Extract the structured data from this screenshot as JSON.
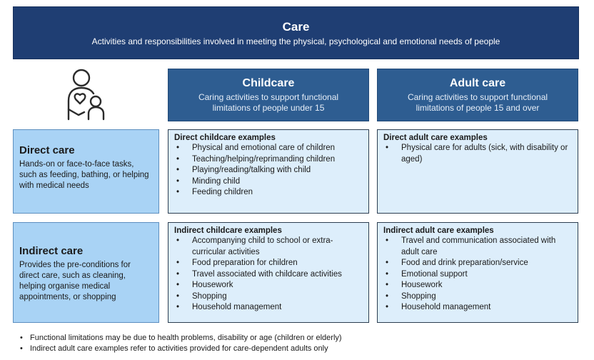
{
  "banner": {
    "title": "Care",
    "subtitle": "Activities and responsibilities involved in meeting the physical, psychological and emotional needs of people"
  },
  "icon": "person-holding-child-icon",
  "columns": {
    "childcare": {
      "title": "Childcare",
      "subtitle": "Caring activities to support functional limitations of people under 15"
    },
    "adult": {
      "title": "Adult care",
      "subtitle": "Caring activities to support functional limitations of people 15 and over"
    }
  },
  "rows": {
    "direct": {
      "title": "Direct care",
      "subtitle": "Hands-on or face-to-face tasks, such as feeding, bathing, or helping with medical needs"
    },
    "indirect": {
      "title": "Indirect care",
      "subtitle": "Provides the pre-conditions for direct care, such as cleaning, helping organise medical appointments, or shopping"
    }
  },
  "cells": {
    "direct_child": {
      "title": "Direct childcare examples",
      "items": [
        "Physical and emotional care of children",
        "Teaching/helping/reprimanding children",
        "Playing/reading/talking with child",
        "Minding child",
        "Feeding children"
      ]
    },
    "direct_adult": {
      "title": "Direct adult care examples",
      "items": [
        "Physical care for adults (sick, with disability or aged)"
      ]
    },
    "indirect_child": {
      "title": "Indirect childcare examples",
      "items": [
        "Accompanying child to school or extra-curricular activities",
        "Food preparation for children",
        "Travel associated with childcare activities",
        "Housework",
        "Shopping",
        "Household management"
      ]
    },
    "indirect_adult": {
      "title": "Indirect adult care examples",
      "items": [
        "Travel and communication associated with adult care",
        "Food and drink preparation/service",
        "Emotional support",
        "Housework",
        "Shopping",
        "Household management"
      ]
    }
  },
  "notes": [
    "Functional limitations may be due to health problems, disability or age (children or elderly)",
    "Indirect adult care examples refer to activities provided for care-dependent adults only"
  ],
  "colors": {
    "banner": "#1f3e73",
    "column_header": "#2e5d91",
    "row_header": "#a9d3f5",
    "cell": "#ddeefb"
  }
}
